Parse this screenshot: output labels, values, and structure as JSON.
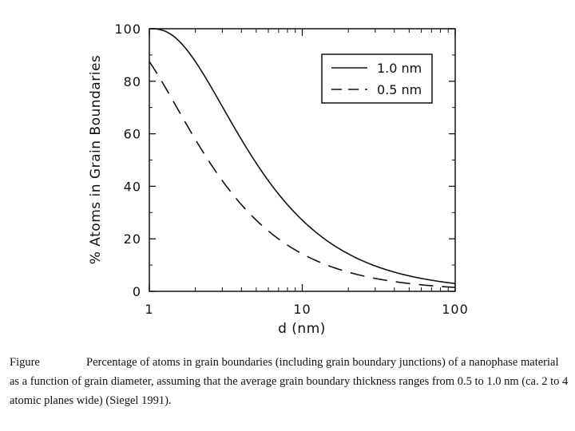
{
  "chart_data": {
    "type": "line",
    "xscale": "log",
    "xlim": [
      1,
      100
    ],
    "ylim": [
      0,
      100
    ],
    "xlabel": "d (nm)",
    "ylabel": "% Atoms in Grain Boundaries",
    "xticks": [
      {
        "value": 1,
        "label": "1"
      },
      {
        "value": 10,
        "label": "10"
      },
      {
        "value": 100,
        "label": "100"
      }
    ],
    "yticks": [
      {
        "value": 0,
        "label": "0"
      },
      {
        "value": 20,
        "label": "20"
      },
      {
        "value": 40,
        "label": "40"
      },
      {
        "value": 60,
        "label": "60"
      },
      {
        "value": 80,
        "label": "80"
      },
      {
        "value": 100,
        "label": "100"
      }
    ],
    "legend_position": "top-right",
    "series": [
      {
        "name": "1.0 nm",
        "style": "solid",
        "delta": 1.0
      },
      {
        "name": "0.5 nm",
        "style": "dashed",
        "delta": 0.5
      }
    ]
  },
  "caption": {
    "label": "Figure",
    "text": "Percentage of atoms in grain boundaries (including grain boundary junctions) of a nanophase material as a function of grain diameter, assuming that the average grain boundary thickness ranges from 0.5 to 1.0 nm (ca. 2 to 4 atomic planes wide) (Siegel 1991)."
  },
  "colors": {
    "ink": "#111111",
    "background": "#ffffff"
  }
}
